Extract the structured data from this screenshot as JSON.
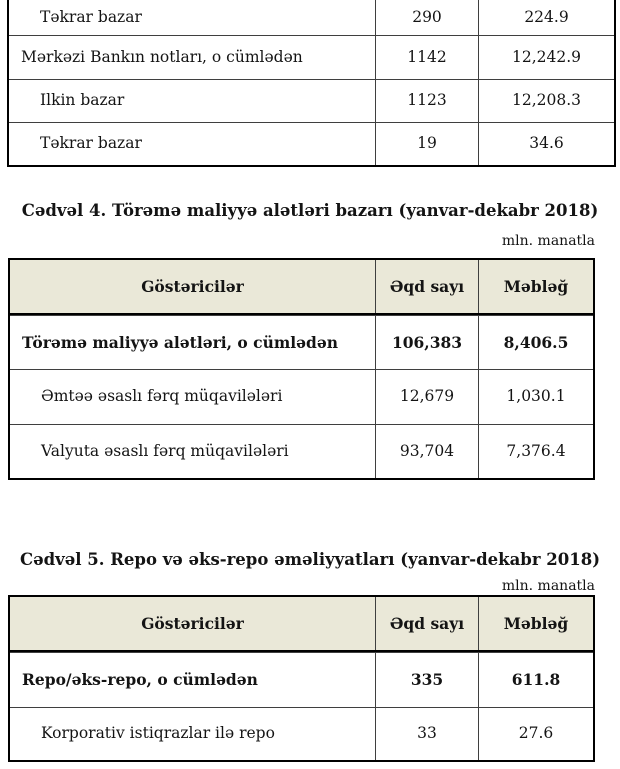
{
  "colors": {
    "header_bg": "#eae8d8",
    "border_outer": "#000000",
    "border_inner": "#3f3f3f",
    "text": "#141414"
  },
  "top_table": {
    "rows": [
      {
        "label": "Təkrar bazar",
        "aqd": "290",
        "mebleg": "224.9"
      },
      {
        "label": "Mərkəzi Bankın notları, o cümlədən",
        "aqd": "1142",
        "mebleg": "12,242.9"
      },
      {
        "label": "Ilkin bazar",
        "aqd": "1123",
        "mebleg": "12,208.3"
      },
      {
        "label": "Təkrar bazar",
        "aqd": "19",
        "mebleg": "34.6"
      }
    ]
  },
  "table4": {
    "title": "Cədvəl 4. Törəmə maliyyə alətləri bazarı (yanvar-dekabr 2018)",
    "unit_note": "mln. manatla",
    "headers": {
      "indicator": "Göstəricilər",
      "deal_count": "Əqd sayı",
      "amount": "Məbləğ"
    },
    "rows": [
      {
        "label": "Törəmə maliyyə alətləri, o cümlədən",
        "aqd": "106,383",
        "mebleg": "8,406.5"
      },
      {
        "label": "Əmtəə əsaslı fərq müqavilələri",
        "aqd": "12,679",
        "mebleg": "1,030.1"
      },
      {
        "label": "Valyuta əsaslı fərq müqavilələri",
        "aqd": "93,704",
        "mebleg": "7,376.4"
      }
    ]
  },
  "table5": {
    "title": "Cədvəl 5. Repo və əks-repo əməliyyatları (yanvar-dekabr 2018)",
    "unit_note": "mln. manatla",
    "headers": {
      "indicator": "Göstəricilər",
      "deal_count": "Əqd sayı",
      "amount": "Məbləğ"
    },
    "rows": [
      {
        "label": "Repo/əks-repo, o cümlədən",
        "aqd": "335",
        "mebleg": "611.8"
      },
      {
        "label": "Korporativ istiqrazlar ilə repo",
        "aqd": "33",
        "mebleg": "27.6"
      }
    ]
  }
}
